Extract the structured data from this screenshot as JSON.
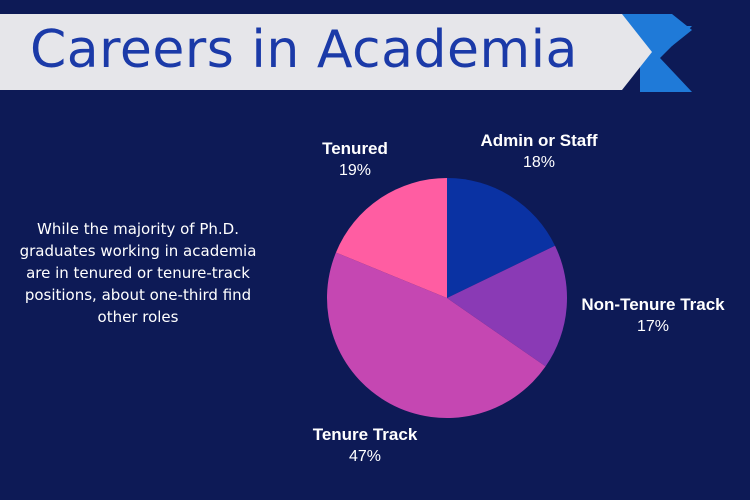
{
  "header": {
    "title": "Careers in Academia",
    "banner_color": "#e6e6ea",
    "accent_color": "#1f7ad8"
  },
  "description": "While the majority of Ph.D. graduates working in academia are in tenured or tenure-track positions, about one-third find other roles",
  "chart_data": {
    "type": "pie",
    "title": "",
    "categories": [
      "Admin or Staff",
      "Non-Tenure Track",
      "Tenure Track",
      "Tenured"
    ],
    "values": [
      18,
      17,
      47,
      19
    ],
    "value_labels": [
      "18%",
      "17%",
      "47%",
      "19%"
    ],
    "colors": [
      "#0a32a3",
      "#8a3ab5",
      "#c547b2",
      "#ff5da2"
    ],
    "start": "12 o'clock, clockwise",
    "legend": "none (direct labels)"
  }
}
